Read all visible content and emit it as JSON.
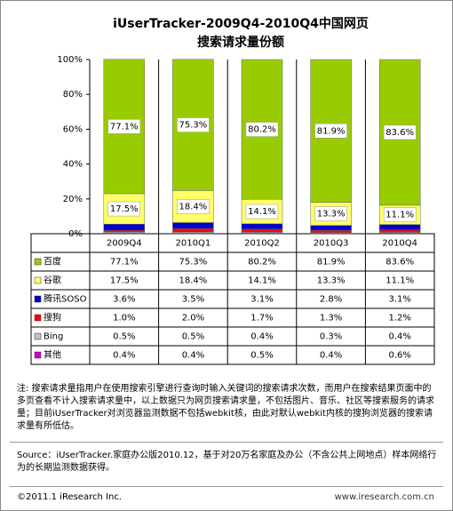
{
  "chart_data": {
    "type": "bar",
    "stacked": true,
    "title": [
      "iUserTracker-2009Q4-2010Q4中国网页",
      "搜索请求量份额"
    ],
    "categories": [
      "2009Q4",
      "2010Q1",
      "2010Q2",
      "2010Q3",
      "2010Q4"
    ],
    "series": [
      {
        "name": "百度",
        "color": "#99cc00",
        "values": [
          77.1,
          75.3,
          80.2,
          81.9,
          83.6
        ],
        "value_labels": [
          "77.1%",
          "75.3%",
          "80.2%",
          "81.9%",
          "83.6%"
        ]
      },
      {
        "name": "谷歌",
        "color": "#ffff66",
        "values": [
          17.5,
          18.4,
          14.1,
          13.3,
          11.1
        ],
        "value_labels": [
          "17.5%",
          "18.4%",
          "14.1%",
          "13.3%",
          "11.1%"
        ]
      },
      {
        "name": "腾讯SOSO",
        "color": "#0000cc",
        "values": [
          3.6,
          3.5,
          3.1,
          2.8,
          3.1
        ],
        "value_labels": [
          "3.6%",
          "3.5%",
          "3.1%",
          "2.8%",
          "3.1%"
        ]
      },
      {
        "name": "搜狗",
        "color": "#ff0000",
        "values": [
          1.0,
          2.0,
          1.7,
          1.3,
          1.2
        ],
        "value_labels": [
          "1.0%",
          "2.0%",
          "1.7%",
          "1.3%",
          "1.2%"
        ]
      },
      {
        "name": "Bing",
        "color": "#c0c0c0",
        "values": [
          0.5,
          0.5,
          0.4,
          0.3,
          0.4
        ],
        "value_labels": [
          "0.5%",
          "0.5%",
          "0.4%",
          "0.3%",
          "0.4%"
        ]
      },
      {
        "name": "其他",
        "color": "#cc00cc",
        "values": [
          0.4,
          0.4,
          0.5,
          0.4,
          0.6
        ],
        "value_labels": [
          "0.4%",
          "0.4%",
          "0.5%",
          "0.4%",
          "0.6%"
        ]
      }
    ],
    "ylim": [
      0,
      100
    ],
    "yticks": [
      {
        "value": 0,
        "label": "0%"
      },
      {
        "value": 20,
        "label": "20%"
      },
      {
        "value": 40,
        "label": "40%"
      },
      {
        "value": 60,
        "label": "60%"
      },
      {
        "value": 80,
        "label": "80%"
      },
      {
        "value": 100,
        "label": "100%"
      }
    ]
  },
  "notes": "注: 搜索请求量指用户在使用搜索引擎进行查询时输入关键词的搜索请求次数，而用户在搜索结果页面中的多页查看不计入搜索请求量中，以上数据只为网页搜索请求量，不包括图片、音乐、社区等搜索服务的请求量；目前iUserTracker对浏览器监测数据不包括webkit核，由此对默认webkit内核的搜狗浏览器的搜索请求量有所低估。",
  "source": "Source：iUserTracker.家庭办公版2010.12，基于对20万名家庭及办公（不含公共上网地点）样本网络行为的长期监测数据获得。",
  "footer": {
    "copyright": "©2011.1 iResearch Inc.",
    "url": "www.iresearch.com.cn"
  }
}
